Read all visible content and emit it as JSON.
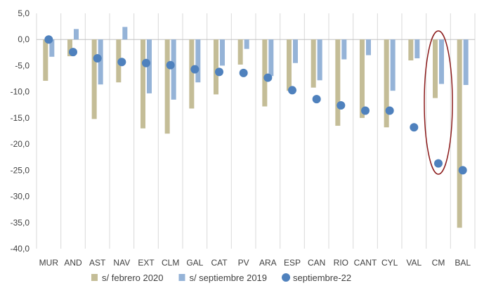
{
  "chart_data": {
    "type": "bar",
    "categories": [
      "MUR",
      "AND",
      "AST",
      "NAV",
      "EXT",
      "CLM",
      "GAL",
      "CAT",
      "PV",
      "ARA",
      "ESP",
      "CAN",
      "RIO",
      "CANT",
      "CYL",
      "VAL",
      "CM",
      "BAL"
    ],
    "series": [
      {
        "name": "s/  febrero 2020",
        "kind": "bar",
        "color": "#c4bd97",
        "values": [
          -7.9,
          -3.2,
          -15.2,
          -8.2,
          -17.0,
          -18.0,
          -13.2,
          -10.5,
          -4.8,
          -12.8,
          -9.8,
          -9.2,
          -16.5,
          -15.0,
          -16.8,
          -4.0,
          -11.2,
          -36.0
        ]
      },
      {
        "name": "s/  septiembre 2019",
        "kind": "bar",
        "color": "#95b3d7",
        "values": [
          -3.3,
          2.0,
          -8.6,
          2.4,
          -10.3,
          -11.5,
          -8.2,
          -5.0,
          -1.8,
          -7.0,
          -4.5,
          -7.8,
          -3.8,
          -3.0,
          -9.8,
          -3.6,
          -8.5,
          -8.7
        ]
      },
      {
        "name": "septiembre-22",
        "kind": "point",
        "color": "#4f81bd",
        "values": [
          0.0,
          -2.4,
          -3.6,
          -4.3,
          -4.5,
          -4.9,
          -5.7,
          -6.2,
          -6.4,
          -7.3,
          -9.7,
          -11.4,
          -12.6,
          -13.6,
          -13.6,
          -16.8,
          -23.7,
          -25.0
        ]
      }
    ],
    "y_ticks": [
      "5,0",
      "0,0",
      "-5,0",
      "-10,0",
      "-15,0",
      "-20,0",
      "-25,0",
      "-30,0",
      "-35,0",
      "-40,0"
    ],
    "ylim": [
      -40,
      5
    ],
    "grid": "vertical category lines",
    "legend": "bottom",
    "annotation": {
      "type": "ellipse",
      "around": "CM",
      "color": "#8b1a1a"
    }
  }
}
